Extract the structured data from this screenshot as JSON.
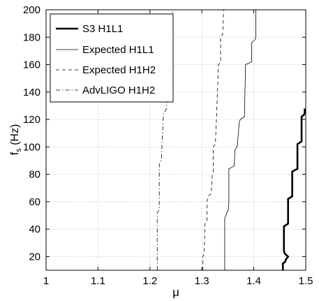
{
  "chart_data": {
    "type": "line",
    "xlabel": "μ",
    "ylabel_main": "f",
    "ylabel_sub": "s",
    "ylabel_unit": " (Hz)",
    "xlim": [
      1,
      1.5
    ],
    "ylim": [
      10,
      200
    ],
    "xticks": [
      1,
      1.1,
      1.2,
      1.3,
      1.4,
      1.5
    ],
    "xtick_labels": [
      "1",
      "1.1",
      "1.2",
      "1.3",
      "1.4",
      "1.5"
    ],
    "yticks": [
      20,
      40,
      60,
      80,
      100,
      120,
      140,
      160,
      180,
      200
    ],
    "ytick_labels": [
      "20",
      "40",
      "60",
      "80",
      "100",
      "120",
      "140",
      "160",
      "180",
      "200"
    ],
    "grid": true,
    "legend_position": "top-left",
    "series": [
      {
        "name": "S3 H1L1",
        "style": "solid-thick",
        "color": "#000000",
        "points": [
          [
            1.456,
            10
          ],
          [
            1.456,
            15
          ],
          [
            1.46,
            16
          ],
          [
            1.462,
            18
          ],
          [
            1.466,
            20
          ],
          [
            1.46,
            22
          ],
          [
            1.458,
            24
          ],
          [
            1.458,
            42
          ],
          [
            1.466,
            44
          ],
          [
            1.466,
            62
          ],
          [
            1.474,
            64
          ],
          [
            1.474,
            82
          ],
          [
            1.484,
            84
          ],
          [
            1.484,
            102
          ],
          [
            1.492,
            104
          ],
          [
            1.492,
            122
          ],
          [
            1.498,
            124
          ],
          [
            1.498,
            128
          ]
        ]
      },
      {
        "name": "Expected H1L1",
        "style": "solid-thin",
        "color": "#000000",
        "points": [
          [
            1.344,
            10
          ],
          [
            1.344,
            48
          ],
          [
            1.346,
            50
          ],
          [
            1.348,
            52
          ],
          [
            1.351,
            54
          ],
          [
            1.352,
            60
          ],
          [
            1.352,
            84
          ],
          [
            1.362,
            86
          ],
          [
            1.364,
            98
          ],
          [
            1.368,
            100
          ],
          [
            1.372,
            118
          ],
          [
            1.374,
            120
          ],
          [
            1.382,
            122
          ],
          [
            1.384,
            160
          ],
          [
            1.396,
            162
          ],
          [
            1.396,
            176
          ],
          [
            1.402,
            178
          ],
          [
            1.404,
            180
          ],
          [
            1.404,
            200
          ]
        ]
      },
      {
        "name": "Expected H1H2",
        "style": "dashed",
        "color": "#000000",
        "points": [
          [
            1.302,
            10
          ],
          [
            1.302,
            20
          ],
          [
            1.304,
            22
          ],
          [
            1.305,
            30
          ],
          [
            1.306,
            44
          ],
          [
            1.31,
            46
          ],
          [
            1.31,
            60
          ],
          [
            1.312,
            64
          ],
          [
            1.318,
            66
          ],
          [
            1.32,
            80
          ],
          [
            1.322,
            82
          ],
          [
            1.322,
            100
          ],
          [
            1.326,
            102
          ],
          [
            1.328,
            120
          ],
          [
            1.33,
            140
          ],
          [
            1.332,
            160
          ],
          [
            1.336,
            162
          ],
          [
            1.336,
            180
          ],
          [
            1.34,
            182
          ],
          [
            1.342,
            200
          ]
        ]
      },
      {
        "name": "AdvLIGO H1H2",
        "style": "dashdot",
        "color": "#000000",
        "points": [
          [
            1.214,
            10
          ],
          [
            1.214,
            52
          ],
          [
            1.218,
            54
          ],
          [
            1.218,
            88
          ],
          [
            1.222,
            90
          ],
          [
            1.224,
            108
          ],
          [
            1.226,
            124
          ],
          [
            1.232,
            128
          ],
          [
            1.234,
            144
          ],
          [
            1.238,
            146
          ],
          [
            1.24,
            164
          ],
          [
            1.242,
            166
          ],
          [
            1.244,
            200
          ]
        ]
      }
    ]
  }
}
